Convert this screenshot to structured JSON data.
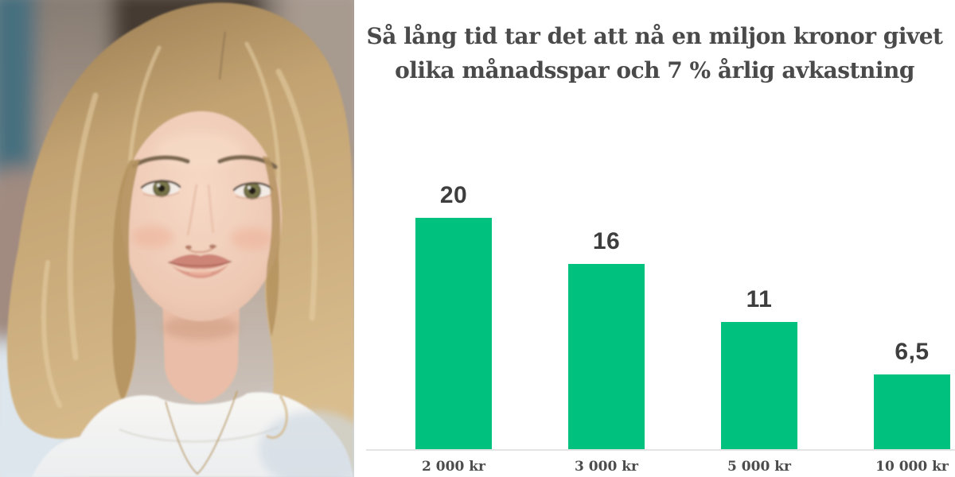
{
  "colors": {
    "background": "#FFFFFF",
    "bar_green": "#00C17E",
    "title_gray": "#4A4A4A",
    "value_gray": "#3E3E3E",
    "tick_gray": "#4C4C4C",
    "axis_gray": "#E4E4E4"
  },
  "photo": {
    "description": "Portrait photo: blonde woman with shoulder-length wavy hair, white crew-neck top, thin gold necklace, blurred beige indoor background with blue-gray band at left"
  },
  "chart_data": {
    "type": "bar",
    "title": "Så lång tid tar det att nå en miljon kronor givet olika månadsspar och 7 % årlig avkastning",
    "title_lines": [
      "Så lång tid tar det att nå en miljon kronor givet",
      "olika månadsspar och 7 % årlig avkastning"
    ],
    "categories": [
      "2 000 kr",
      "3 000 kr",
      "5 000 kr",
      "10 000 kr"
    ],
    "values": [
      20,
      16,
      11,
      6.5
    ],
    "value_labels": [
      "20",
      "16",
      "11",
      "6,5"
    ],
    "xlabel": "",
    "ylabel": "",
    "ylim": [
      0,
      20
    ],
    "grid": false,
    "legend": false,
    "bar_color": "#00C17E",
    "axis_line_color": "#E4E4E4"
  }
}
